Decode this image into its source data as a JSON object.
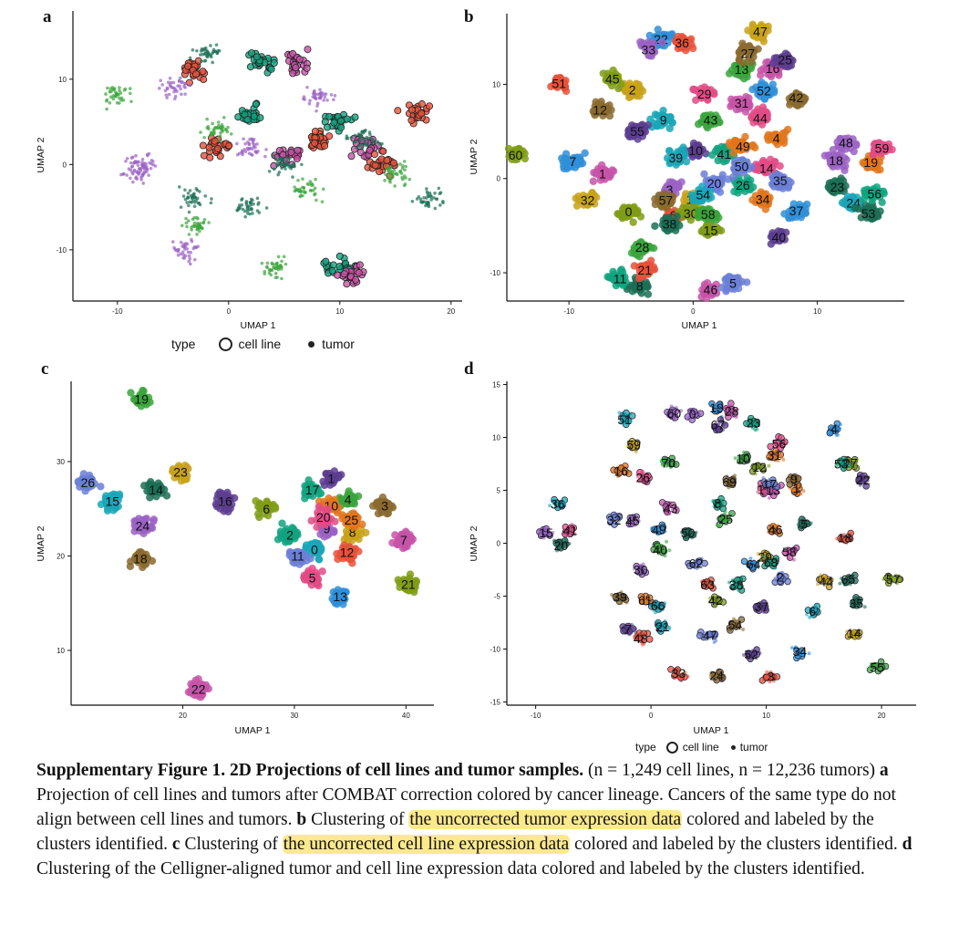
{
  "panels": [
    {
      "letter": "a"
    },
    {
      "letter": "b"
    },
    {
      "letter": "c"
    },
    {
      "letter": "d"
    }
  ],
  "legend_ab": {
    "title": "type",
    "items": [
      "cell line",
      "tumor"
    ]
  },
  "legend_cd": {
    "title": "type",
    "items": [
      "cell line",
      "tumor"
    ]
  },
  "caption": {
    "title": "Supplementary Figure 1. 2D Projections of cell lines and tumor samples.",
    "counts": " (n = 1,249 cell lines, n = 12,236 tumors) ",
    "a_letter": "a",
    "a_text": " Projection of cell lines and tumors after COMBAT correction colored by cancer lineage. Cancers of the same type do not align between cell lines and tumors.  ",
    "b_letter": "b",
    "b_text_1": " Clustering of ",
    "b_highlight": "the uncorrected tumor expression data",
    "b_text_2": " colored and labeled by the clusters identified. ",
    "c_letter": "c",
    "c_text_1": " Clustering of ",
    "c_highlight": "the uncorrected cell line expression data",
    "c_text_2": " colored and labeled by the clusters identified. ",
    "d_letter": "d",
    "d_text": " Clustering of the Celligner-aligned tumor and cell line expression data colored and labeled by the clusters identified."
  },
  "colors": {
    "highlight": "#fce98c",
    "palette": [
      "#e8513a",
      "#e0751c",
      "#c8a21a",
      "#7f9c16",
      "#3aa53c",
      "#10a37f",
      "#1aa6b7",
      "#2f8fd8",
      "#6b7fd6",
      "#9b62c4",
      "#c753a8",
      "#e34b86",
      "#8a6a2e",
      "#5c3d8f",
      "#1b6f56"
    ]
  },
  "chart_data": [
    {
      "type": "scatter",
      "panel": "a",
      "xlabel": "UMAP_1",
      "ylabel": "UMAP_2",
      "xlim": [
        -14,
        21
      ],
      "ylim": [
        -16,
        18
      ],
      "xticks": [
        -10,
        0,
        10,
        20
      ],
      "yticks": [
        -10,
        0,
        10
      ],
      "grid": false,
      "series": [
        {
          "name": "cell line",
          "points": [
            [
              -1,
              2
            ],
            [
              2,
              6
            ],
            [
              5,
              1
            ],
            [
              8,
              3
            ],
            [
              10,
              5
            ],
            [
              12,
              2
            ],
            [
              14,
              0
            ],
            [
              10,
              -12
            ],
            [
              11,
              -13
            ],
            [
              -3,
              11
            ],
            [
              3,
              12
            ],
            [
              6,
              12
            ],
            [
              17,
              6
            ]
          ]
        },
        {
          "name": "tumor",
          "points": [
            [
              -10,
              8
            ],
            [
              -5,
              9
            ],
            [
              -2,
              13
            ],
            [
              -1,
              4
            ],
            [
              2,
              2
            ],
            [
              5,
              0
            ],
            [
              7,
              -3
            ],
            [
              8,
              8
            ],
            [
              12,
              3
            ],
            [
              15,
              -1
            ],
            [
              -8,
              -1
            ],
            [
              -3,
              -4
            ],
            [
              -3,
              -7
            ],
            [
              -4,
              -10
            ],
            [
              2,
              -5
            ],
            [
              4,
              -12
            ],
            [
              -8,
              0
            ],
            [
              18,
              -4
            ]
          ]
        }
      ]
    },
    {
      "type": "scatter",
      "panel": "b",
      "xlabel": "UMAP_1",
      "ylabel": "UMAP_2",
      "xlim": [
        -15,
        17
      ],
      "ylim": [
        -13,
        17.5
      ],
      "xticks": [
        -10,
        0,
        10
      ],
      "yticks": [
        -10,
        0,
        10
      ],
      "grid": false,
      "clusters": [
        {
          "label": "0",
          "x": -5.2,
          "y": -3.5
        },
        {
          "label": "1",
          "x": -7.3,
          "y": 0.5
        },
        {
          "label": "2",
          "x": -4.9,
          "y": 9.4
        },
        {
          "label": "3",
          "x": -1.9,
          "y": -1.2
        },
        {
          "label": "4",
          "x": 6.7,
          "y": 4.3
        },
        {
          "label": "5",
          "x": 3.2,
          "y": -11.1
        },
        {
          "label": "6",
          "x": -1.6,
          "y": -3.9
        },
        {
          "label": "7",
          "x": -9.7,
          "y": 1.8
        },
        {
          "label": "8",
          "x": -4.3,
          "y": -11.4
        },
        {
          "label": "9",
          "x": -2.4,
          "y": 6.2
        },
        {
          "label": "10",
          "x": 0.2,
          "y": 3.0
        },
        {
          "label": "11",
          "x": -5.9,
          "y": -10.6
        },
        {
          "label": "12",
          "x": -7.5,
          "y": 7.3
        },
        {
          "label": "13",
          "x": 3.9,
          "y": 11.6
        },
        {
          "label": "14",
          "x": 5.9,
          "y": 1.1
        },
        {
          "label": "15",
          "x": 1.4,
          "y": -5.5
        },
        {
          "label": "16",
          "x": 6.4,
          "y": 11.7
        },
        {
          "label": "17",
          "x": 0.0,
          "y": -2.2
        },
        {
          "label": "18",
          "x": 11.5,
          "y": 1.9
        },
        {
          "label": "19",
          "x": 14.3,
          "y": 1.7
        },
        {
          "label": "20",
          "x": 1.7,
          "y": -0.5
        },
        {
          "label": "21",
          "x": -3.9,
          "y": -9.7
        },
        {
          "label": "22",
          "x": -2.6,
          "y": 14.8
        },
        {
          "label": "23",
          "x": 11.6,
          "y": -0.9
        },
        {
          "label": "24",
          "x": 12.9,
          "y": -2.6
        },
        {
          "label": "25",
          "x": 7.4,
          "y": 12.6
        },
        {
          "label": "26",
          "x": 4.0,
          "y": -0.7
        },
        {
          "label": "27",
          "x": 4.4,
          "y": 13.3
        },
        {
          "label": "28",
          "x": -4.1,
          "y": -7.3
        },
        {
          "label": "29",
          "x": 0.9,
          "y": 9.0
        },
        {
          "label": "30",
          "x": -0.2,
          "y": -3.7
        },
        {
          "label": "31",
          "x": 3.9,
          "y": 8.0
        },
        {
          "label": "32",
          "x": -8.5,
          "y": -2.3
        },
        {
          "label": "33",
          "x": -3.6,
          "y": 13.7
        },
        {
          "label": "34",
          "x": 5.6,
          "y": -2.2
        },
        {
          "label": "35",
          "x": 7.0,
          "y": -0.2
        },
        {
          "label": "36",
          "x": -0.9,
          "y": 14.4
        },
        {
          "label": "37",
          "x": 8.3,
          "y": -3.4
        },
        {
          "label": "38",
          "x": -1.9,
          "y": -4.8
        },
        {
          "label": "39",
          "x": -1.4,
          "y": 2.2
        },
        {
          "label": "40",
          "x": 6.9,
          "y": -6.2
        },
        {
          "label": "41",
          "x": 2.5,
          "y": 2.6
        },
        {
          "label": "42",
          "x": 8.3,
          "y": 8.6
        },
        {
          "label": "43",
          "x": 1.4,
          "y": 6.2
        },
        {
          "label": "44",
          "x": 5.4,
          "y": 6.4
        },
        {
          "label": "45",
          "x": -6.5,
          "y": 10.6
        },
        {
          "label": "46",
          "x": 1.4,
          "y": -11.8
        },
        {
          "label": "47",
          "x": 5.4,
          "y": 15.6
        },
        {
          "label": "48",
          "x": 12.3,
          "y": 3.8
        },
        {
          "label": "49",
          "x": 4.0,
          "y": 3.4
        },
        {
          "label": "50",
          "x": 3.9,
          "y": 1.3
        },
        {
          "label": "51",
          "x": -10.8,
          "y": 10.1
        },
        {
          "label": "52",
          "x": 5.7,
          "y": 9.3
        },
        {
          "label": "53",
          "x": 14.1,
          "y": -3.7
        },
        {
          "label": "54",
          "x": 0.8,
          "y": -1.7
        },
        {
          "label": "55",
          "x": -4.5,
          "y": 5.0
        },
        {
          "label": "56",
          "x": 14.6,
          "y": -1.6
        },
        {
          "label": "57",
          "x": -2.2,
          "y": -2.3
        },
        {
          "label": "58",
          "x": 1.2,
          "y": -3.8
        },
        {
          "label": "59",
          "x": 15.2,
          "y": 3.2
        },
        {
          "label": "60",
          "x": -14.3,
          "y": 2.5
        }
      ]
    },
    {
      "type": "scatter",
      "panel": "c",
      "xlabel": "UMAP_1",
      "ylabel": "UMAP_2",
      "xlim": [
        10,
        42.5
      ],
      "ylim": [
        4.2,
        38.5
      ],
      "xticks": [
        20,
        30,
        40
      ],
      "yticks": [
        10,
        20,
        30
      ],
      "grid": false,
      "clusters": [
        {
          "label": "0",
          "x": 31.8,
          "y": 20.7
        },
        {
          "label": "1",
          "x": 33.3,
          "y": 28.2
        },
        {
          "label": "2",
          "x": 29.6,
          "y": 22.2
        },
        {
          "label": "3",
          "x": 38.1,
          "y": 25.3
        },
        {
          "label": "4",
          "x": 34.8,
          "y": 26.0
        },
        {
          "label": "5",
          "x": 31.6,
          "y": 17.7
        },
        {
          "label": "6",
          "x": 27.5,
          "y": 25.0
        },
        {
          "label": "7",
          "x": 39.8,
          "y": 21.7
        },
        {
          "label": "8",
          "x": 35.2,
          "y": 22.5
        },
        {
          "label": "9",
          "x": 32.9,
          "y": 22.9
        },
        {
          "label": "10",
          "x": 33.3,
          "y": 25.3
        },
        {
          "label": "11",
          "x": 30.3,
          "y": 20.0
        },
        {
          "label": "12",
          "x": 34.7,
          "y": 20.4
        },
        {
          "label": "13",
          "x": 34.1,
          "y": 15.7
        },
        {
          "label": "14",
          "x": 17.6,
          "y": 27.0
        },
        {
          "label": "15",
          "x": 13.7,
          "y": 25.8
        },
        {
          "label": "16",
          "x": 23.8,
          "y": 25.8
        },
        {
          "label": "17",
          "x": 31.6,
          "y": 27.0
        },
        {
          "label": "18",
          "x": 16.2,
          "y": 19.7
        },
        {
          "label": "19",
          "x": 16.3,
          "y": 36.6
        },
        {
          "label": "20",
          "x": 32.6,
          "y": 24.1
        },
        {
          "label": "21",
          "x": 40.2,
          "y": 17.0
        },
        {
          "label": "22",
          "x": 21.4,
          "y": 5.9
        },
        {
          "label": "23",
          "x": 19.8,
          "y": 28.9
        },
        {
          "label": "24",
          "x": 16.4,
          "y": 23.2
        },
        {
          "label": "25",
          "x": 35.1,
          "y": 23.8
        },
        {
          "label": "26",
          "x": 11.5,
          "y": 27.8
        }
      ]
    },
    {
      "type": "scatter",
      "panel": "d",
      "xlabel": "UMAP_1",
      "ylabel": "UMAP_2",
      "xlim": [
        -12.5,
        23
      ],
      "ylim": [
        -15.3,
        15.3
      ],
      "xticks": [
        -10,
        0,
        10,
        20
      ],
      "yticks": [
        -15,
        -10,
        -5,
        0,
        5,
        10,
        15
      ],
      "grid": false,
      "clusters": [
        {
          "label": "0",
          "x": 3.6,
          "y": 12.2
        },
        {
          "label": "1",
          "x": 12.6,
          "y": 5.2
        },
        {
          "label": "2",
          "x": 11.2,
          "y": -3.2
        },
        {
          "label": "3",
          "x": 10.4,
          "y": -12.6
        },
        {
          "label": "4",
          "x": 15.9,
          "y": 10.8
        },
        {
          "label": "5",
          "x": 13.3,
          "y": 1.8
        },
        {
          "label": "6",
          "x": 14.0,
          "y": -6.4
        },
        {
          "label": "7",
          "x": -2.0,
          "y": -8.1
        },
        {
          "label": "8",
          "x": 5.8,
          "y": 3.8
        },
        {
          "label": "9",
          "x": 12.4,
          "y": 6.1
        },
        {
          "label": "10",
          "x": 8.0,
          "y": 8.0
        },
        {
          "label": "11",
          "x": 9.8,
          "y": 5.1
        },
        {
          "label": "12",
          "x": 9.4,
          "y": 7.2
        },
        {
          "label": "13",
          "x": 10.6,
          "y": 5.0
        },
        {
          "label": "14",
          "x": 17.6,
          "y": -8.5
        },
        {
          "label": "15",
          "x": -9.1,
          "y": 1.0
        },
        {
          "label": "16",
          "x": -2.6,
          "y": 6.8
        },
        {
          "label": "17",
          "x": 10.3,
          "y": 5.6
        },
        {
          "label": "18",
          "x": 16.8,
          "y": 0.5
        },
        {
          "label": "19",
          "x": 5.7,
          "y": 12.8
        },
        {
          "label": "20",
          "x": -7.8,
          "y": -0.2
        },
        {
          "label": "21",
          "x": 1.0,
          "y": -7.9
        },
        {
          "label": "22",
          "x": 18.4,
          "y": 6.0
        },
        {
          "label": "23",
          "x": 8.9,
          "y": 11.4
        },
        {
          "label": "24",
          "x": 5.7,
          "y": -12.5
        },
        {
          "label": "25",
          "x": 6.5,
          "y": 2.3
        },
        {
          "label": "26",
          "x": -0.7,
          "y": 6.2
        },
        {
          "label": "27",
          "x": 17.3,
          "y": 7.6
        },
        {
          "label": "28",
          "x": 7.0,
          "y": 12.5
        },
        {
          "label": "29",
          "x": 9.9,
          "y": -1.3
        },
        {
          "label": "30",
          "x": -0.9,
          "y": -2.5
        },
        {
          "label": "31",
          "x": 10.7,
          "y": 8.3
        },
        {
          "label": "32",
          "x": -3.2,
          "y": 2.2
        },
        {
          "label": "33",
          "x": 2.4,
          "y": -12.3
        },
        {
          "label": "34",
          "x": 12.9,
          "y": -10.2
        },
        {
          "label": "35",
          "x": 17.8,
          "y": -5.7
        },
        {
          "label": "36",
          "x": -8.1,
          "y": 3.7
        },
        {
          "label": "37",
          "x": 9.6,
          "y": -6.0
        },
        {
          "label": "38",
          "x": 7.4,
          "y": -3.9
        },
        {
          "label": "39",
          "x": -2.7,
          "y": -5.1
        },
        {
          "label": "40",
          "x": 0.8,
          "y": -0.6
        },
        {
          "label": "41",
          "x": -7.0,
          "y": 1.2
        },
        {
          "label": "42",
          "x": 5.6,
          "y": -5.4
        },
        {
          "label": "43",
          "x": 1.7,
          "y": 3.3
        },
        {
          "label": "44",
          "x": 15.2,
          "y": -3.6
        },
        {
          "label": "45",
          "x": -1.6,
          "y": 2.1
        },
        {
          "label": "46",
          "x": 10.8,
          "y": 1.3
        },
        {
          "label": "47",
          "x": 5.1,
          "y": -8.7
        },
        {
          "label": "48",
          "x": -0.9,
          "y": -9.0
        },
        {
          "label": "49",
          "x": 0.7,
          "y": 1.3
        },
        {
          "label": "50",
          "x": 3.2,
          "y": 1.0
        },
        {
          "label": "51",
          "x": -2.3,
          "y": 11.7
        },
        {
          "label": "52",
          "x": 8.7,
          "y": -10.5
        },
        {
          "label": "53",
          "x": 16.5,
          "y": 7.5
        },
        {
          "label": "54",
          "x": 7.3,
          "y": -7.7
        },
        {
          "label": "55",
          "x": 19.6,
          "y": -11.7
        },
        {
          "label": "56",
          "x": 11.1,
          "y": 9.4
        },
        {
          "label": "57",
          "x": 21.0,
          "y": -3.4
        },
        {
          "label": "58",
          "x": 12.0,
          "y": -0.8
        },
        {
          "label": "59",
          "x": -1.5,
          "y": 9.3
        },
        {
          "label": "60",
          "x": 2.0,
          "y": 12.3
        },
        {
          "label": "61",
          "x": -0.5,
          "y": -5.4
        },
        {
          "label": "62",
          "x": 3.9,
          "y": -1.9
        },
        {
          "label": "63",
          "x": 4.9,
          "y": -3.9
        },
        {
          "label": "64",
          "x": 8.9,
          "y": -2.0
        },
        {
          "label": "65",
          "x": 17.1,
          "y": -3.4
        },
        {
          "label": "66",
          "x": 0.6,
          "y": -5.9
        },
        {
          "label": "67",
          "x": 5.8,
          "y": 11.2
        },
        {
          "label": "68",
          "x": 10.4,
          "y": -1.8
        },
        {
          "label": "69",
          "x": 6.8,
          "y": 5.8
        },
        {
          "label": "70",
          "x": 1.5,
          "y": 7.6
        }
      ]
    }
  ]
}
